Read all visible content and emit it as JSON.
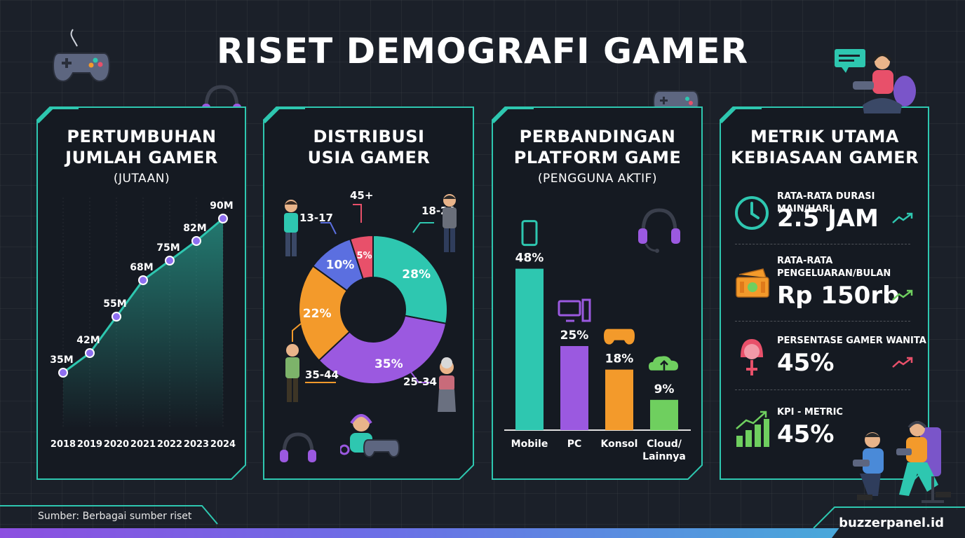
{
  "title": "RISET DEMOGRAFI GAMER",
  "colors": {
    "teal": "#2ec7b0",
    "purple": "#9b59e0",
    "orange": "#f39a2b",
    "blue": "#5b6fe0",
    "pink": "#e8506a",
    "green": "#6fcf5f",
    "panel_bg": "#151a22",
    "background": "#1b2029"
  },
  "panels": {
    "growth": {
      "title_line1": "PERTUMBUHAN",
      "title_line2": "JUMLAH GAMER",
      "subtitle": "(JUTAAN)"
    },
    "age": {
      "title_line1": "DISTRIBUSI",
      "title_line2": "USIA GAMER"
    },
    "platform": {
      "title_line1": "PERBANDINGAN",
      "title_line2": "PLATFORM GAME",
      "subtitle": "(PENGGUNA AKTIF)"
    },
    "metrics": {
      "title_line1": "METRIK UTAMA",
      "title_line2": "KEBIASAAN GAMER",
      "items": [
        {
          "label": "RATA-RATA DURASI MAIN/HARI",
          "value": "2.5 JAM",
          "icon": "clock-icon",
          "trend_color": "#2ec7b0"
        },
        {
          "label": "RATA-RATA\nPENGELUARAN/BULAN",
          "value": "Rp 150rb",
          "icon": "money-icon",
          "trend_color": "#6fcf5f"
        },
        {
          "label": "PERSENTASE GAMER WANITA",
          "value": "45%",
          "icon": "female-icon",
          "trend_color": "#e8506a"
        },
        {
          "label": "KPI - METRIC",
          "value": "45%",
          "icon": "growth-chart-icon",
          "trend_color": "#6fcf5f"
        }
      ]
    }
  },
  "chart_data": [
    {
      "type": "area",
      "title": "PERTUMBUHAN JUMLAH GAMER (JUTAAN)",
      "x": [
        "2018",
        "2019",
        "2020",
        "2021",
        "2022",
        "2023",
        "2024"
      ],
      "values": [
        35,
        42,
        55,
        68,
        75,
        82,
        90
      ],
      "data_labels": [
        "35M",
        "42M",
        "55M",
        "68M",
        "75M",
        "82M",
        "90M"
      ],
      "ylim": [
        0,
        100
      ]
    },
    {
      "type": "pie",
      "title": "DISTRIBUSI USIA GAMER",
      "categories": [
        "18-24",
        "25-34",
        "35-44",
        "13-17",
        "45+"
      ],
      "values": [
        28,
        35,
        22,
        10,
        5
      ],
      "data_labels": [
        "28%",
        "35%",
        "22%",
        "10%",
        "5%"
      ],
      "colors": [
        "#2ec7b0",
        "#9b59e0",
        "#f39a2b",
        "#5b6fe0",
        "#e8506a"
      ]
    },
    {
      "type": "bar",
      "title": "PERBANDINGAN PLATFORM GAME (PENGGUNA AKTIF)",
      "categories": [
        "Mobile",
        "PC",
        "Konsol",
        "Cloud/\nLainnya"
      ],
      "values": [
        48,
        25,
        18,
        9
      ],
      "data_labels": [
        "48%",
        "25%",
        "18%",
        "9%"
      ],
      "colors": [
        "#2ec7b0",
        "#9b59e0",
        "#f39a2b",
        "#6fcf5f"
      ],
      "icons": [
        "smartphone-icon",
        "desktop-pc-icon",
        "gamepad-icon",
        "cloud-upload-icon"
      ],
      "ylim": [
        0,
        50
      ]
    }
  ],
  "footer": {
    "source": "Sumber: Berbagai sumber riset",
    "brand": "buzzerpanel.id"
  }
}
